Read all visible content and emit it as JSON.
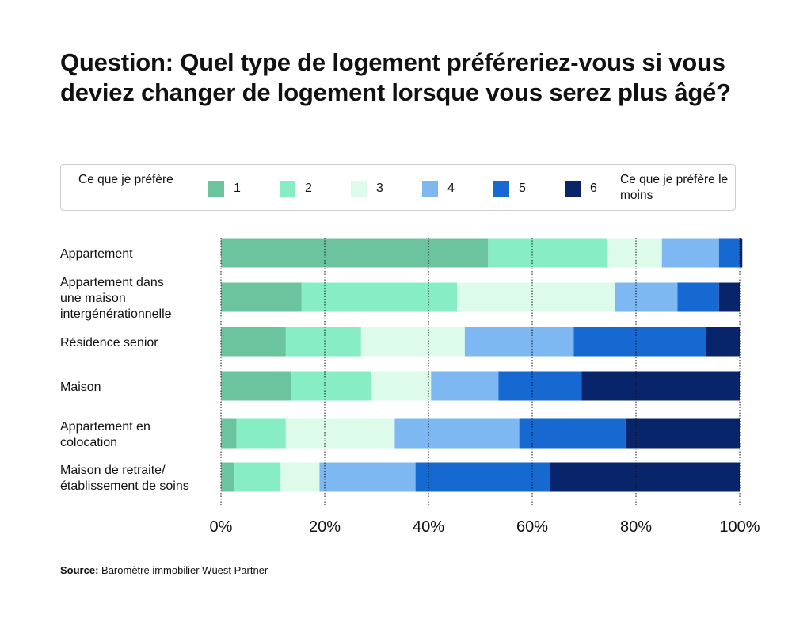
{
  "title": "Question: Quel type de logement préféreriez-vous si vous deviez changer de logement lorsque vous serez plus âgé?",
  "legend": {
    "left_label": "Ce que je préfère",
    "right_label": "Ce que je préfère le moins",
    "items": [
      "1",
      "2",
      "3",
      "4",
      "5",
      "6"
    ]
  },
  "source": {
    "label": "Source:",
    "text": "Baromètre immobilier Wüest Partner"
  },
  "colors": [
    "#6cc49e",
    "#86edc4",
    "#dcfbeb",
    "#7db8f2",
    "#1569d1",
    "#08246a"
  ],
  "chart_data": {
    "type": "bar",
    "orientation": "horizontal",
    "stacked": true,
    "categories": [
      "Appartement",
      "Appartement dans une maison intergénérationnelle",
      "Résidence senior",
      "Maison",
      "Appartement en colocation",
      "Maison de retraite/ établissement de soins"
    ],
    "series": [
      {
        "name": "1",
        "values": [
          51.5,
          15.5,
          12.5,
          13.5,
          3,
          2.5
        ]
      },
      {
        "name": "2",
        "values": [
          23,
          30,
          14.5,
          15.5,
          9.5,
          9
        ]
      },
      {
        "name": "3",
        "values": [
          10.5,
          30.5,
          20,
          11.5,
          21,
          7.5
        ]
      },
      {
        "name": "4",
        "values": [
          11,
          12,
          21,
          13,
          24,
          18.5
        ]
      },
      {
        "name": "5",
        "values": [
          4,
          8,
          25.5,
          16,
          20.5,
          26
        ]
      },
      {
        "name": "6",
        "values": [
          0.5,
          4,
          6.5,
          30.5,
          22,
          36.5
        ]
      }
    ],
    "xlim": [
      0,
      100
    ],
    "xticks": [
      "0%",
      "20%",
      "40%",
      "60%",
      "80%",
      "100%"
    ],
    "grid": true
  }
}
